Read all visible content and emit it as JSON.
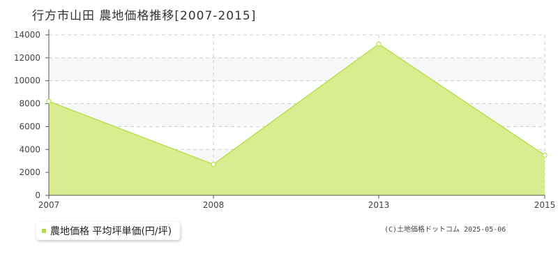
{
  "page": {
    "title": "行方市山田 農地価格推移[2007-2015]",
    "credit": "(C)土地価格ドットコム 2025-05-06"
  },
  "legend": {
    "label": "農地価格 平均坪単価(円/坪)"
  },
  "colors": {
    "area_fill": "#d9ec90",
    "line": "#b9e04f",
    "plot_bg": "#f7f7f9",
    "grid": "#cccccc",
    "legend_marker": "#b3dc3a"
  },
  "chart_data": {
    "type": "area",
    "title": "行方市山田 農地価格推移[2007-2015]",
    "xlabel": "",
    "ylabel": "",
    "categories": [
      "2007",
      "2008",
      "2013",
      "2015"
    ],
    "series": [
      {
        "name": "農地価格 平均坪単価(円/坪)",
        "values": [
          8200,
          2700,
          13200,
          3500
        ]
      }
    ],
    "ylim": [
      0,
      14000
    ],
    "yticks": [
      0,
      2000,
      4000,
      6000,
      8000,
      10000,
      12000,
      14000
    ],
    "grid": true,
    "legend_position": "bottom-left"
  }
}
